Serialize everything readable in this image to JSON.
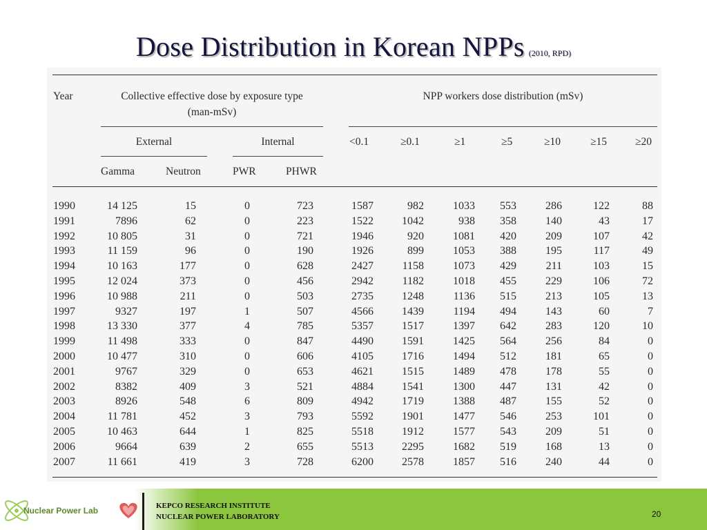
{
  "slide": {
    "title": "Dose Distribution in Korean NPPs",
    "title_note": "(2010, RPD)",
    "page_number": "20"
  },
  "footer": {
    "logo_text": "Nuclear Power Lab",
    "org_line1": "KEPCO RESEARCH INSTITUTE",
    "org_line2": "NUCLEAR POWER LABORATORY",
    "bar_color": "#8cc63f"
  },
  "table": {
    "year_header": "Year",
    "collective_header_line1": "Collective effective dose by exposure type",
    "collective_header_line2": "(man-mSv)",
    "npp_header": "NPP workers dose distribution (mSv)",
    "external_label": "External",
    "internal_label": "Internal",
    "sub_headers": [
      "Gamma",
      "Neutron",
      "PWR",
      "PHWR"
    ],
    "dist_headers": [
      "<0.1",
      "≥0.1",
      "≥1",
      "≥5",
      "≥10",
      "≥15",
      "≥20"
    ],
    "rows": [
      [
        "1990",
        "14 125",
        "15",
        "0",
        "723",
        "1587",
        "982",
        "1033",
        "553",
        "286",
        "122",
        "88"
      ],
      [
        "1991",
        "7896",
        "62",
        "0",
        "223",
        "1522",
        "1042",
        "938",
        "358",
        "140",
        "43",
        "17"
      ],
      [
        "1992",
        "10 805",
        "31",
        "0",
        "721",
        "1946",
        "920",
        "1081",
        "420",
        "209",
        "107",
        "42"
      ],
      [
        "1993",
        "11 159",
        "96",
        "0",
        "190",
        "1926",
        "899",
        "1053",
        "388",
        "195",
        "117",
        "49"
      ],
      [
        "1994",
        "10 163",
        "177",
        "0",
        "628",
        "2427",
        "1158",
        "1073",
        "429",
        "211",
        "103",
        "15"
      ],
      [
        "1995",
        "12 024",
        "373",
        "0",
        "456",
        "2942",
        "1182",
        "1018",
        "455",
        "229",
        "106",
        "72"
      ],
      [
        "1996",
        "10 988",
        "211",
        "0",
        "503",
        "2735",
        "1248",
        "1136",
        "515",
        "213",
        "105",
        "13"
      ],
      [
        "1997",
        "9327",
        "197",
        "1",
        "507",
        "4566",
        "1439",
        "1194",
        "494",
        "143",
        "60",
        "7"
      ],
      [
        "1998",
        "13 330",
        "377",
        "4",
        "785",
        "5357",
        "1517",
        "1397",
        "642",
        "283",
        "120",
        "10"
      ],
      [
        "1999",
        "11 498",
        "333",
        "0",
        "847",
        "4490",
        "1591",
        "1425",
        "564",
        "256",
        "84",
        "0"
      ],
      [
        "2000",
        "10 477",
        "310",
        "0",
        "606",
        "4105",
        "1716",
        "1494",
        "512",
        "181",
        "65",
        "0"
      ],
      [
        "2001",
        "9767",
        "329",
        "0",
        "653",
        "4621",
        "1515",
        "1489",
        "478",
        "178",
        "55",
        "0"
      ],
      [
        "2002",
        "8382",
        "409",
        "3",
        "521",
        "4884",
        "1541",
        "1300",
        "447",
        "131",
        "42",
        "0"
      ],
      [
        "2003",
        "8926",
        "548",
        "6",
        "809",
        "4942",
        "1719",
        "1388",
        "487",
        "155",
        "52",
        "0"
      ],
      [
        "2004",
        "11 781",
        "452",
        "3",
        "793",
        "5592",
        "1901",
        "1477",
        "546",
        "253",
        "101",
        "0"
      ],
      [
        "2005",
        "10 463",
        "644",
        "1",
        "825",
        "5518",
        "1912",
        "1577",
        "543",
        "209",
        "51",
        "0"
      ],
      [
        "2006",
        "9664",
        "639",
        "2",
        "655",
        "5513",
        "2295",
        "1682",
        "519",
        "168",
        "13",
        "0"
      ],
      [
        "2007",
        "11 661",
        "419",
        "3",
        "728",
        "6200",
        "2578",
        "1857",
        "516",
        "240",
        "44",
        "0"
      ]
    ]
  }
}
